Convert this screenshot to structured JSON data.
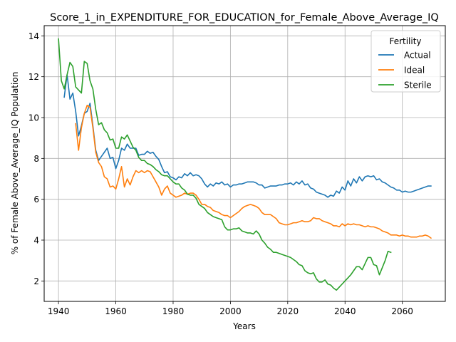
{
  "chart_data": {
    "type": "line",
    "title": "Score_1_in_EXPENDITURE_FOR_EDUCATION_for_Female_Above_Average_IQ",
    "xlabel": "Years",
    "ylabel": "% of Female Above_Average_IQ Population",
    "xlim": [
      1935,
      2075
    ],
    "ylim": [
      1.0,
      14.5
    ],
    "x_ticks": [
      1940,
      1960,
      1980,
      2000,
      2020,
      2040,
      2060
    ],
    "y_ticks": [
      2,
      4,
      6,
      8,
      10,
      12,
      14
    ],
    "grid": true,
    "legend": {
      "title": "Fertility",
      "position": "top-right"
    },
    "colors": {
      "Actual": "#1f77b4",
      "Ideal": "#ff7f0e",
      "Sterile": "#2ca02c"
    },
    "series": [
      {
        "name": "Actual",
        "x": [
          1942,
          1943,
          1944,
          1945,
          1946,
          1947,
          1948,
          1949,
          1950,
          1951,
          1952,
          1953,
          1954,
          1955,
          1956,
          1957,
          1958,
          1959,
          1960,
          1961,
          1962,
          1963,
          1964,
          1965,
          1966,
          1967,
          1968,
          1969,
          1970,
          1971,
          1972,
          1973,
          1974,
          1975,
          1976,
          1977,
          1978,
          1979,
          1980,
          1981,
          1982,
          1983,
          1984,
          1985,
          1986,
          1987,
          1988,
          1989,
          1990,
          1991,
          1992,
          1993,
          1994,
          1995,
          1996,
          1997,
          1998,
          1999,
          2000,
          2001,
          2002,
          2003,
          2004,
          2005,
          2006,
          2007,
          2008,
          2009,
          2010,
          2011,
          2012,
          2013,
          2014,
          2015,
          2016,
          2017,
          2018,
          2019,
          2020,
          2021,
          2022,
          2023,
          2024,
          2025,
          2026,
          2027,
          2028,
          2029,
          2030,
          2031,
          2032,
          2033,
          2034,
          2035,
          2036,
          2037,
          2038,
          2039,
          2040,
          2041,
          2042,
          2043,
          2044,
          2045,
          2046,
          2047,
          2048,
          2049,
          2050,
          2051,
          2052,
          2053,
          2054,
          2055,
          2056,
          2057,
          2058,
          2059,
          2060,
          2061,
          2062,
          2063,
          2064,
          2065,
          2066,
          2067,
          2068,
          2069,
          2070
        ],
        "values": [
          11.0,
          12.1,
          10.9,
          11.2,
          10.3,
          9.1,
          9.6,
          10.2,
          10.3,
          10.7,
          9.6,
          8.4,
          7.9,
          8.1,
          8.3,
          8.5,
          8.0,
          8.05,
          7.5,
          7.9,
          8.5,
          8.4,
          8.7,
          8.5,
          8.5,
          8.5,
          8.15,
          8.2,
          8.2,
          8.35,
          8.25,
          8.3,
          8.1,
          7.95,
          7.6,
          7.3,
          7.35,
          7.1,
          7.05,
          6.95,
          7.1,
          7.05,
          7.25,
          7.15,
          7.3,
          7.15,
          7.2,
          7.15,
          7.0,
          6.75,
          6.6,
          6.75,
          6.65,
          6.8,
          6.75,
          6.85,
          6.7,
          6.75,
          6.6,
          6.7,
          6.7,
          6.75,
          6.75,
          6.8,
          6.85,
          6.85,
          6.85,
          6.8,
          6.7,
          6.7,
          6.55,
          6.6,
          6.65,
          6.65,
          6.65,
          6.7,
          6.7,
          6.75,
          6.75,
          6.8,
          6.7,
          6.85,
          6.75,
          6.9,
          6.7,
          6.75,
          6.55,
          6.5,
          6.35,
          6.3,
          6.25,
          6.2,
          6.1,
          6.2,
          6.15,
          6.4,
          6.3,
          6.6,
          6.45,
          6.9,
          6.65,
          7.0,
          6.8,
          7.1,
          6.9,
          7.1,
          7.15,
          7.1,
          7.15,
          6.95,
          7.0,
          6.85,
          6.8,
          6.7,
          6.6,
          6.55,
          6.45,
          6.45,
          6.35,
          6.4,
          6.35,
          6.35,
          6.4,
          6.45,
          6.5,
          6.55,
          6.6,
          6.65,
          6.65
        ]
      },
      {
        "name": "Ideal",
        "x": [
          1946,
          1947,
          1948,
          1949,
          1950,
          1951,
          1952,
          1953,
          1954,
          1955,
          1956,
          1957,
          1958,
          1959,
          1960,
          1961,
          1962,
          1963,
          1964,
          1965,
          1966,
          1967,
          1968,
          1969,
          1970,
          1971,
          1972,
          1973,
          1974,
          1975,
          1976,
          1977,
          1978,
          1979,
          1980,
          1981,
          1982,
          1983,
          1984,
          1985,
          1986,
          1987,
          1988,
          1989,
          1990,
          1991,
          1992,
          1993,
          1994,
          1995,
          1996,
          1997,
          1998,
          1999,
          2000,
          2001,
          2002,
          2003,
          2004,
          2005,
          2006,
          2007,
          2008,
          2009,
          2010,
          2011,
          2012,
          2013,
          2014,
          2015,
          2016,
          2017,
          2018,
          2019,
          2020,
          2021,
          2022,
          2023,
          2024,
          2025,
          2026,
          2027,
          2028,
          2029,
          2030,
          2031,
          2032,
          2033,
          2034,
          2035,
          2036,
          2037,
          2038,
          2039,
          2040,
          2041,
          2042,
          2043,
          2044,
          2045,
          2046,
          2047,
          2048,
          2049,
          2050,
          2051,
          2052,
          2053,
          2054,
          2055,
          2056,
          2057,
          2058,
          2059,
          2060,
          2061,
          2062,
          2063,
          2064,
          2065,
          2066,
          2067,
          2068,
          2069,
          2070
        ],
        "values": [
          9.7,
          8.4,
          9.5,
          10.2,
          10.6,
          10.5,
          9.5,
          8.3,
          7.8,
          7.6,
          7.1,
          7.0,
          6.6,
          6.65,
          6.5,
          7.0,
          7.6,
          6.6,
          7.0,
          6.7,
          7.1,
          7.4,
          7.3,
          7.4,
          7.3,
          7.4,
          7.35,
          7.1,
          6.85,
          6.6,
          6.2,
          6.5,
          6.65,
          6.3,
          6.2,
          6.1,
          6.15,
          6.2,
          6.3,
          6.25,
          6.3,
          6.3,
          6.2,
          6.0,
          5.75,
          5.75,
          5.65,
          5.6,
          5.45,
          5.4,
          5.35,
          5.25,
          5.2,
          5.2,
          5.1,
          5.2,
          5.3,
          5.4,
          5.55,
          5.65,
          5.7,
          5.75,
          5.7,
          5.65,
          5.55,
          5.35,
          5.25,
          5.25,
          5.25,
          5.15,
          5.05,
          4.85,
          4.8,
          4.75,
          4.75,
          4.8,
          4.85,
          4.85,
          4.9,
          4.95,
          4.9,
          4.9,
          4.95,
          5.1,
          5.05,
          5.05,
          4.95,
          4.9,
          4.85,
          4.8,
          4.7,
          4.7,
          4.65,
          4.8,
          4.7,
          4.8,
          4.75,
          4.8,
          4.75,
          4.75,
          4.7,
          4.65,
          4.7,
          4.65,
          4.65,
          4.6,
          4.55,
          4.45,
          4.4,
          4.35,
          4.25,
          4.25,
          4.25,
          4.2,
          4.25,
          4.2,
          4.2,
          4.15,
          4.15,
          4.15,
          4.2,
          4.2,
          4.25,
          4.2,
          4.1
        ]
      },
      {
        "name": "Sterile",
        "x": [
          1940,
          1941,
          1942,
          1943,
          1944,
          1945,
          1946,
          1947,
          1948,
          1949,
          1950,
          1951,
          1952,
          1953,
          1954,
          1955,
          1956,
          1957,
          1958,
          1959,
          1960,
          1961,
          1962,
          1963,
          1964,
          1965,
          1966,
          1967,
          1968,
          1969,
          1970,
          1971,
          1972,
          1973,
          1974,
          1975,
          1976,
          1977,
          1978,
          1979,
          1980,
          1981,
          1982,
          1983,
          1984,
          1985,
          1986,
          1987,
          1988,
          1989,
          1990,
          1991,
          1992,
          1993,
          1994,
          1995,
          1996,
          1997,
          1998,
          1999,
          2000,
          2001,
          2002,
          2003,
          2004,
          2005,
          2006,
          2007,
          2008,
          2009,
          2010,
          2011,
          2012,
          2013,
          2014,
          2015,
          2016,
          2017,
          2018,
          2019,
          2020,
          2021,
          2022,
          2023,
          2024,
          2025,
          2026,
          2027,
          2028,
          2029,
          2030,
          2031,
          2032,
          2033,
          2034,
          2035,
          2036,
          2037,
          2038,
          2039,
          2040,
          2041,
          2042,
          2043,
          2044,
          2045,
          2046,
          2047,
          2048,
          2049,
          2050,
          2051,
          2052,
          2053,
          2054,
          2055,
          2056
        ],
        "values": [
          13.85,
          11.8,
          11.4,
          12.1,
          12.7,
          12.5,
          11.5,
          11.35,
          11.2,
          12.75,
          12.65,
          11.8,
          11.4,
          10.4,
          9.65,
          9.75,
          9.4,
          9.25,
          8.9,
          8.95,
          8.5,
          8.5,
          9.05,
          8.95,
          9.15,
          8.85,
          8.55,
          8.4,
          8.05,
          7.9,
          7.9,
          7.75,
          7.7,
          7.6,
          7.45,
          7.35,
          7.2,
          7.15,
          7.15,
          7.0,
          6.85,
          6.75,
          6.75,
          6.55,
          6.45,
          6.25,
          6.2,
          6.2,
          6.05,
          5.75,
          5.65,
          5.55,
          5.35,
          5.25,
          5.15,
          5.1,
          5.05,
          5.0,
          4.65,
          4.5,
          4.5,
          4.55,
          4.55,
          4.6,
          4.45,
          4.4,
          4.35,
          4.35,
          4.3,
          4.45,
          4.3,
          4.0,
          3.85,
          3.65,
          3.55,
          3.4,
          3.4,
          3.35,
          3.3,
          3.25,
          3.2,
          3.15,
          3.05,
          2.95,
          2.8,
          2.75,
          2.5,
          2.4,
          2.35,
          2.4,
          2.1,
          1.95,
          1.95,
          2.05,
          1.85,
          1.8,
          1.65,
          1.55,
          1.7,
          1.85,
          2.0,
          2.15,
          2.3,
          2.5,
          2.7,
          2.7,
          2.55,
          2.85,
          3.15,
          3.15,
          2.8,
          2.75,
          2.3,
          2.65,
          3.0,
          3.45,
          3.4
        ]
      }
    ]
  }
}
